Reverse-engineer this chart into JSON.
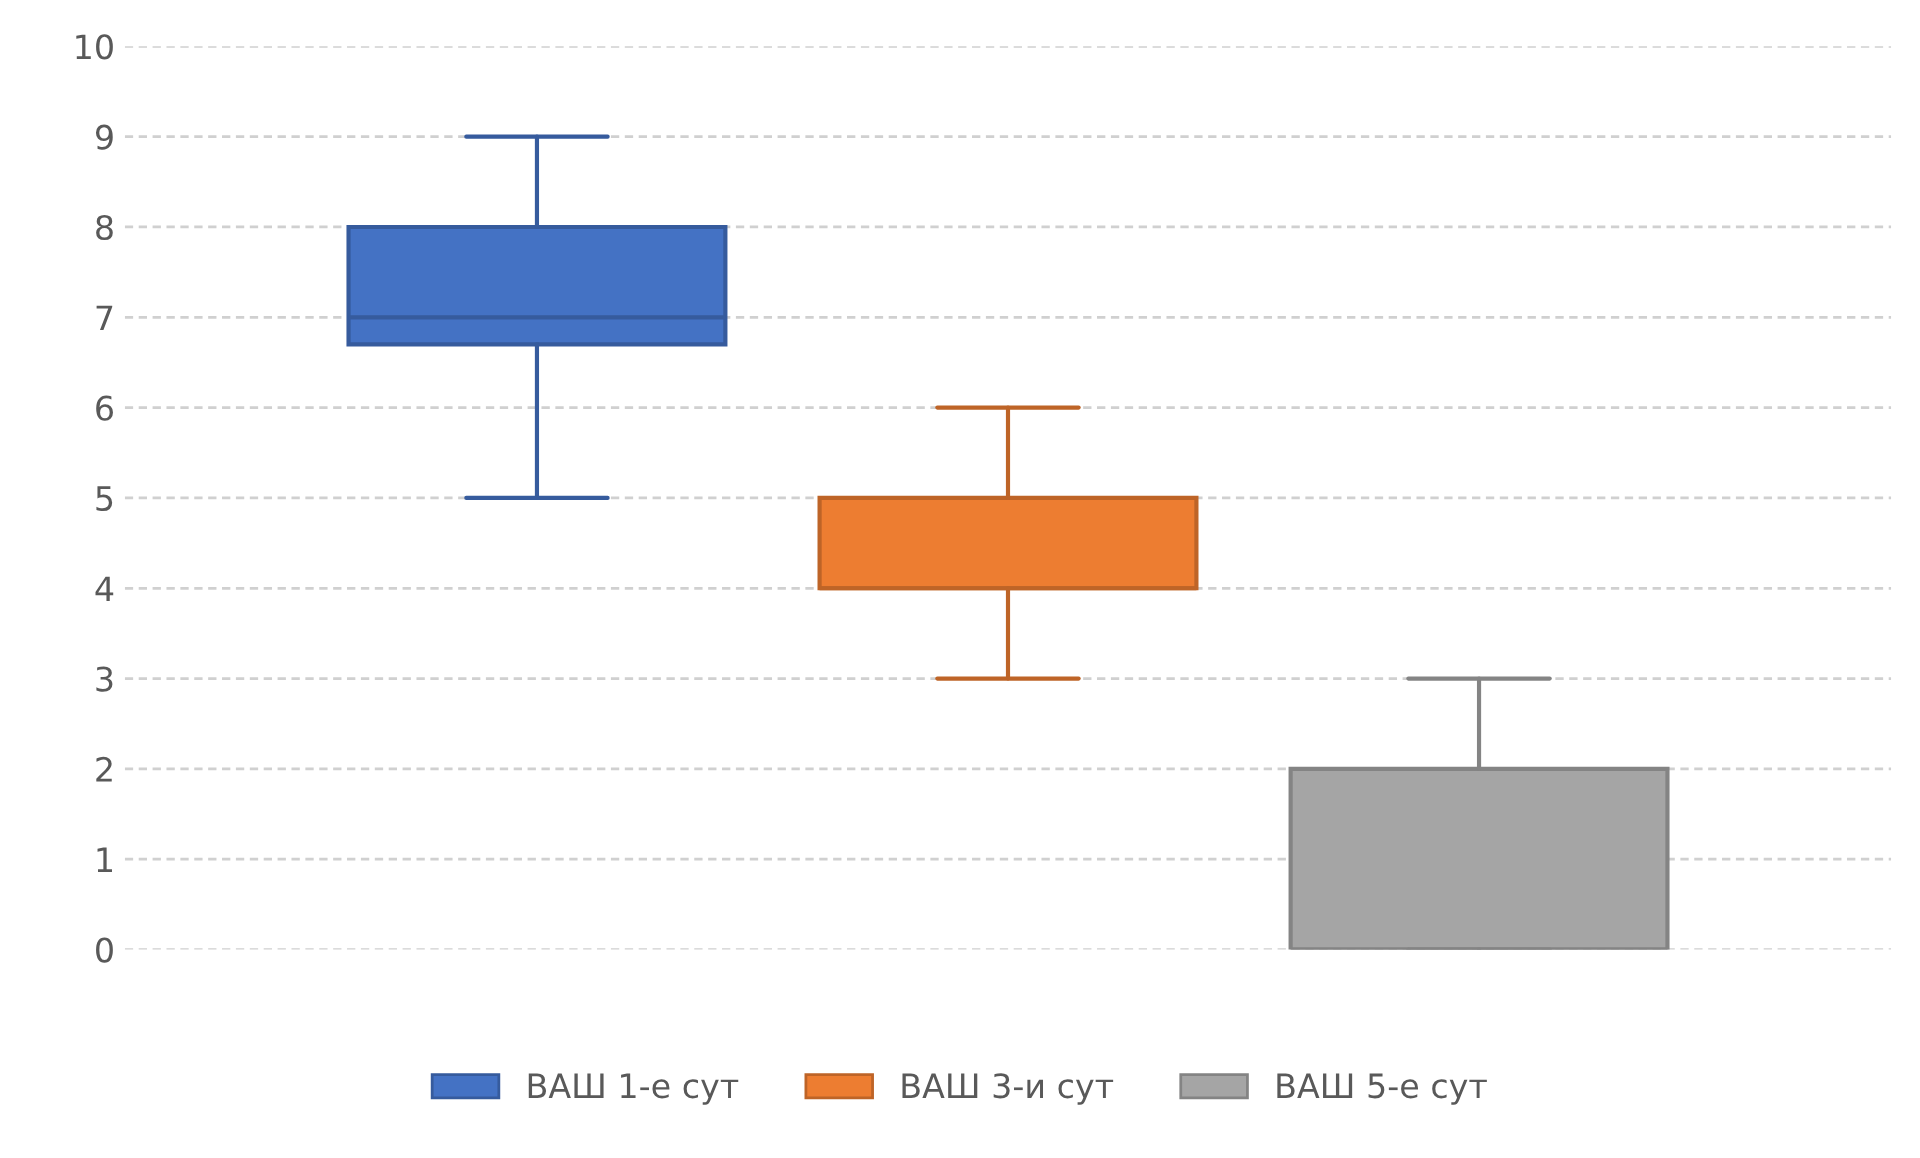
{
  "chart_data": {
    "type": "box",
    "categories": [
      null
    ],
    "series": [
      {
        "name": "ВАШ 1-е сут",
        "color": "#4472c4",
        "boxes": [
          {
            "low": 5,
            "q1": 6.7,
            "median": 7,
            "q3": 8,
            "high": 9
          }
        ]
      },
      {
        "name": "ВАШ 3-и сут",
        "color": "#ed7d31",
        "boxes": [
          {
            "low": 3,
            "q1": 4,
            "median": 4,
            "q3": 5,
            "high": 6
          }
        ]
      },
      {
        "name": "ВАШ 5-е сут",
        "color": "#a5a5a5",
        "boxes": [
          {
            "low": 0,
            "q1": 0,
            "median": 0,
            "q3": 2,
            "high": 3
          }
        ]
      }
    ],
    "ylim": [
      0,
      10
    ],
    "yticks": [
      0,
      1,
      2,
      3,
      4,
      5,
      6,
      7,
      8,
      9,
      10
    ],
    "grid": "y",
    "legend": "bottom"
  }
}
